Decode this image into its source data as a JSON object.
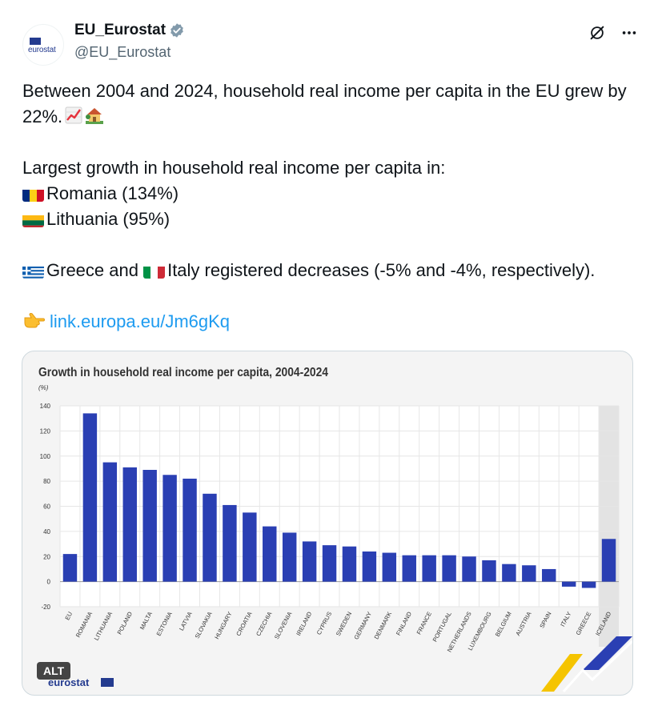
{
  "account": {
    "display_name": "EU_Eurostat",
    "handle": "@EU_Eurostat",
    "avatar_text": "eurostat"
  },
  "tweet": {
    "line1": "Between 2004 and 2024, household real income per capita in the EU grew by 22%.",
    "line2": "Largest growth in household real income per capita in:",
    "romania": "Romania (134%)",
    "lithuania": "Lithuania (95%)",
    "greece": "Greece and ",
    "italy": "Italy registered decreases (-5% and -4%, respectively).",
    "link": "link.europa.eu/Jm6gKq"
  },
  "media": {
    "alt_badge": "ALT",
    "logo_text": "eurostat"
  },
  "icons": {
    "verified": "verified-badge-icon",
    "grok": "grok-icon",
    "more": "more-options-icon",
    "chart_up": "chart-increasing-icon",
    "house": "house-with-garden-icon",
    "pointing": "backhand-index-pointing-right-icon"
  },
  "colors": {
    "bar": "#2a3fb3",
    "link": "#1d9bf0",
    "iceland_bg": "#e3e3e3"
  },
  "chart_data": {
    "type": "bar",
    "title": "Growth in household real income per capita, 2004-2024",
    "ylabel": "(%)",
    "ylim": [
      -20,
      140
    ],
    "yticks": [
      -20,
      0,
      20,
      40,
      60,
      80,
      100,
      120,
      140
    ],
    "grid": true,
    "categories": [
      "EU",
      "ROMANIA",
      "LITHUANIA",
      "POLAND",
      "MALTA",
      "ESTONIA",
      "LATVIA",
      "SLOVAKIA",
      "HUNGARY",
      "CROATIA",
      "CZECHIA",
      "SLOVENIA",
      "IRELAND",
      "CYPRUS",
      "SWEDEN",
      "GERMANY",
      "DENMARK",
      "FINLAND",
      "FRANCE",
      "PORTUGAL",
      "NETHERLANDS",
      "LUXEMBOURG",
      "BELGIUM",
      "AUSTRIA",
      "SPAIN",
      "ITALY",
      "GREECE",
      "ICELAND"
    ],
    "values": [
      22,
      134,
      95,
      91,
      89,
      85,
      82,
      70,
      61,
      55,
      44,
      39,
      32,
      29,
      28,
      24,
      23,
      21,
      21,
      21,
      20,
      17,
      14,
      13,
      10,
      -4,
      -5,
      34
    ]
  }
}
